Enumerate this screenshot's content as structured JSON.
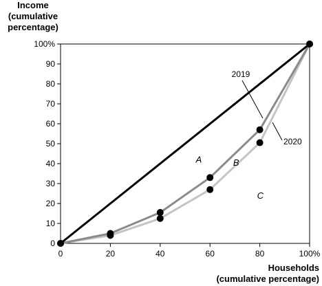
{
  "chart_data": {
    "type": "line",
    "ylabel": [
      "Income",
      "(cumulative",
      "percentage)"
    ],
    "xlabel": [
      "Households",
      "(cumulative percentage)"
    ],
    "x_ticks": [
      "0",
      "20",
      "40",
      "60",
      "80",
      "100%"
    ],
    "y_ticks": [
      "0",
      "10",
      "20",
      "30",
      "40",
      "50",
      "60",
      "70",
      "80",
      "90",
      "100%"
    ],
    "xlim": [
      0,
      100
    ],
    "ylim": [
      0,
      100
    ],
    "grid": false,
    "series": [
      {
        "name": "2019",
        "x": [
          0,
          20,
          40,
          60,
          80,
          100
        ],
        "y": [
          0,
          5,
          15.5,
          33,
          57,
          100
        ],
        "color": "#8a8a8a"
      },
      {
        "name": "2020",
        "x": [
          0,
          20,
          40,
          60,
          80,
          100
        ],
        "y": [
          0,
          4,
          12.5,
          27,
          50.5,
          100
        ],
        "color": "#c4c4c4"
      }
    ],
    "equality_line": {
      "x": [
        0,
        100
      ],
      "y": [
        0,
        100
      ],
      "color": "#000000"
    },
    "area_labels": [
      "A",
      "B",
      "C"
    ]
  }
}
